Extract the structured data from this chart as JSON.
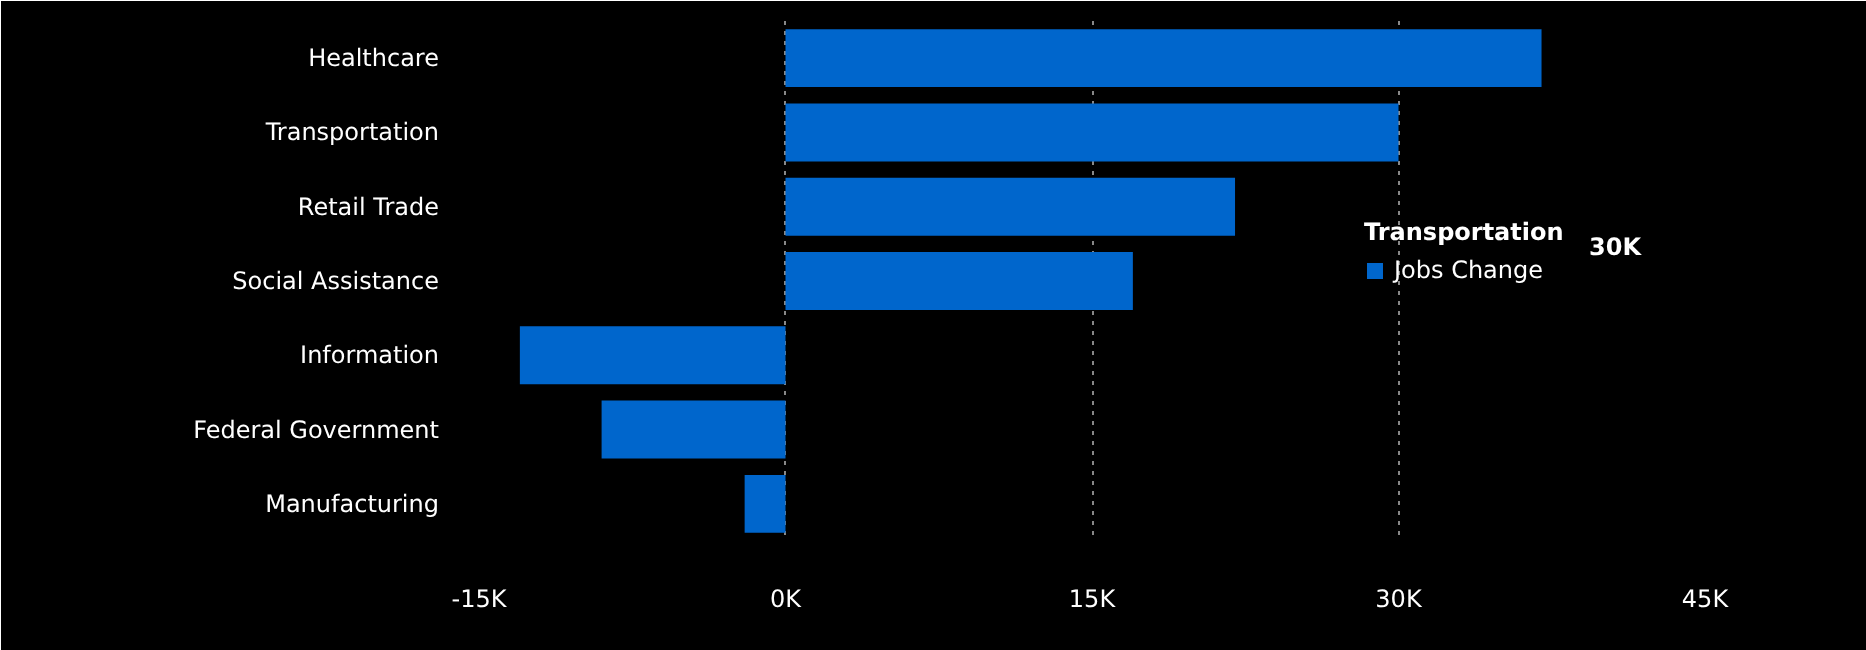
{
  "chart_data": {
    "type": "bar",
    "orientation": "horizontal",
    "categories": [
      "Healthcare",
      "Transportation",
      "Retail Trade",
      "Social Assistance",
      "Information",
      "Federal Government",
      "Manufacturing"
    ],
    "series": [
      {
        "name": "Jobs Change",
        "color": "#0066cc",
        "values": [
          37,
          30,
          22,
          17,
          -13,
          -9,
          -2
        ]
      }
    ],
    "xlim": [
      -15,
      45
    ],
    "xticks": [
      {
        "value": -15,
        "label": "-15K"
      },
      {
        "value": 0,
        "label": "0K"
      },
      {
        "value": 15,
        "label": "15K"
      },
      {
        "value": 30,
        "label": "30K"
      },
      {
        "value": 45,
        "label": "45K"
      }
    ],
    "grid": "x",
    "legend": "right",
    "annotations": [
      "Transportation",
      "30K"
    ]
  }
}
